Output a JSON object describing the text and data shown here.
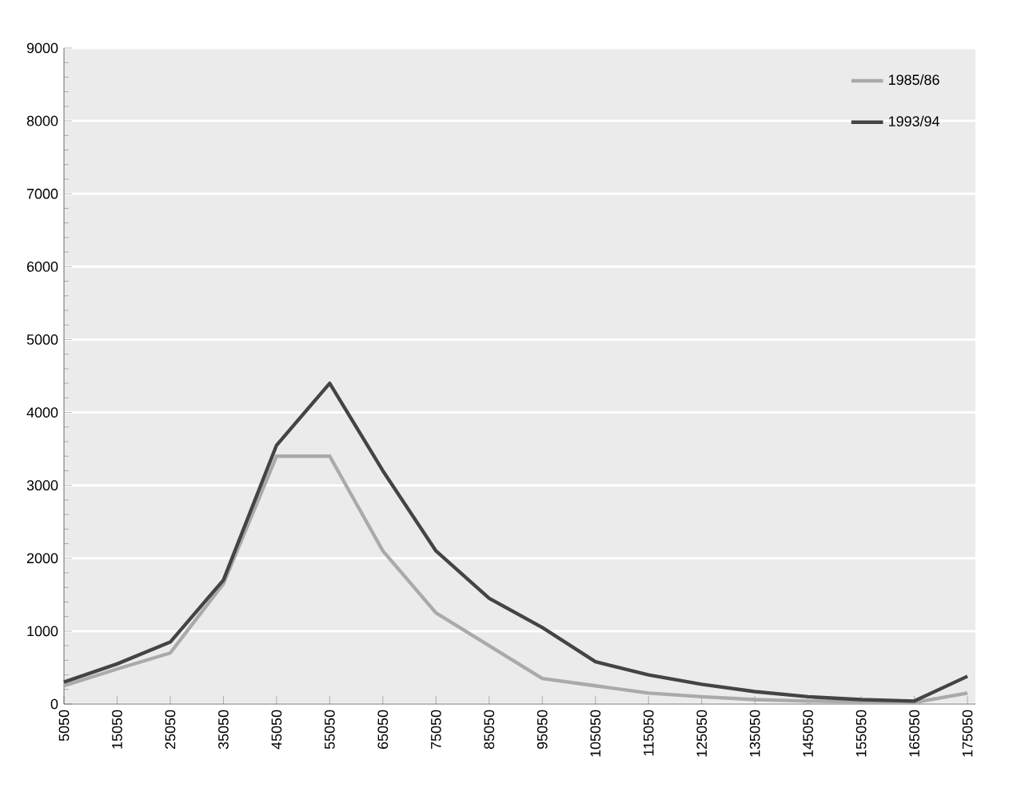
{
  "chart_data": {
    "type": "line",
    "categories": [
      "5050",
      "15050",
      "25050",
      "35050",
      "45050",
      "55050",
      "65050",
      "75050",
      "85050",
      "95050",
      "105050",
      "115050",
      "125050",
      "135050",
      "145050",
      "155050",
      "165050",
      "175050"
    ],
    "series": [
      {
        "name": "1985/86",
        "color": "#aaaaaa",
        "values": [
          250,
          480,
          700,
          1650,
          3400,
          3400,
          2100,
          1250,
          800,
          350,
          250,
          150,
          100,
          60,
          40,
          30,
          20,
          150
        ]
      },
      {
        "name": "1993/94",
        "color": "#444444",
        "values": [
          300,
          550,
          850,
          1700,
          3550,
          4400,
          3200,
          2100,
          1450,
          1050,
          580,
          400,
          270,
          170,
          100,
          60,
          40,
          380
        ]
      }
    ],
    "ylim": [
      0,
      9000
    ],
    "yticks": [
      0,
      1000,
      2000,
      3000,
      4000,
      5000,
      6000,
      7000,
      8000,
      9000
    ],
    "grid": "y",
    "legend": "top right",
    "marker": "none",
    "line_style": "solid"
  }
}
